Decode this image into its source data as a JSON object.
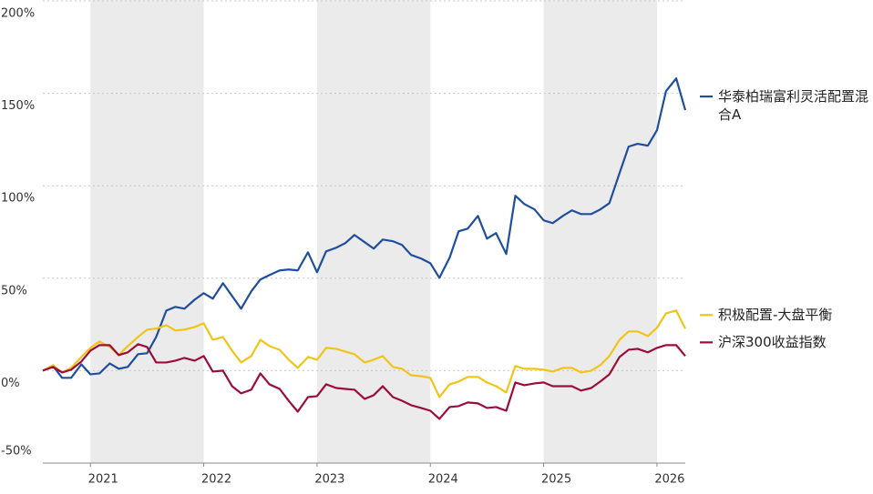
{
  "chart_data": {
    "type": "line",
    "x": [
      2020.58,
      2020.67,
      2020.75,
      2020.83,
      2020.92,
      2021.0,
      2021.08,
      2021.17,
      2021.25,
      2021.33,
      2021.42,
      2021.5,
      2021.58,
      2021.67,
      2021.75,
      2021.83,
      2021.92,
      2022.0,
      2022.08,
      2022.17,
      2022.25,
      2022.33,
      2022.42,
      2022.5,
      2022.58,
      2022.67,
      2022.75,
      2022.83,
      2022.92,
      2023.0,
      2023.08,
      2023.17,
      2023.25,
      2023.33,
      2023.42,
      2023.5,
      2023.58,
      2023.67,
      2023.75,
      2023.83,
      2023.92,
      2024.0,
      2024.08,
      2024.17,
      2024.25,
      2024.33,
      2024.42,
      2024.5,
      2024.58,
      2024.67,
      2024.75,
      2024.83,
      2024.92,
      2025.0,
      2025.08,
      2025.17,
      2025.25,
      2025.33,
      2025.42,
      2025.5,
      2025.58,
      2025.67,
      2025.75,
      2025.83,
      2025.92,
      2026.0,
      2026.08,
      2026.17,
      2026.25
    ],
    "series": [
      {
        "name": "华泰柏瑞富利灵活配置混合A",
        "color": "#1f4e9e",
        "values": [
          0,
          2.5,
          -3.9,
          -3.9,
          3.4,
          -2.0,
          -1.5,
          3.9,
          1.0,
          2.0,
          8.9,
          9.4,
          18.2,
          32.5,
          34.5,
          33.5,
          38.4,
          41.9,
          38.9,
          47.3,
          40.4,
          33.5,
          42.9,
          49.3,
          51.7,
          54.2,
          54.7,
          54.2,
          64.0,
          53.2,
          64.5,
          66.5,
          69.0,
          73.4,
          69.5,
          66.0,
          70.9,
          70.0,
          68.0,
          62.6,
          60.6,
          58.1,
          50.2,
          61.1,
          75.4,
          76.8,
          83.7,
          71.4,
          74.4,
          63.1,
          94.6,
          90.1,
          87.2,
          81.3,
          79.8,
          83.7,
          86.7,
          84.7,
          84.7,
          87.2,
          90.6,
          106.9,
          121.2,
          122.7,
          121.7,
          130.0,
          151.2,
          158.1,
          140.9
        ]
      },
      {
        "name": "积极配置-大盘平衡",
        "color": "#f0c419",
        "values": [
          0,
          3.0,
          -1.0,
          1.5,
          7.4,
          12.3,
          15.8,
          12.8,
          8.4,
          13.3,
          18.2,
          22.2,
          22.7,
          24.6,
          21.7,
          22.2,
          23.6,
          25.6,
          16.7,
          18.2,
          10.8,
          4.4,
          7.9,
          16.7,
          13.3,
          11.3,
          5.9,
          1.5,
          7.4,
          5.9,
          12.3,
          11.8,
          10.3,
          8.9,
          4.4,
          5.9,
          7.9,
          2.0,
          1.0,
          -2.5,
          -3.0,
          -3.9,
          -14.3,
          -7.4,
          -5.9,
          -3.4,
          -3.4,
          -6.4,
          -8.4,
          -11.8,
          2.5,
          1.0,
          1.0,
          0.5,
          -0.5,
          1.5,
          1.5,
          -1.0,
          0,
          3.0,
          7.9,
          16.7,
          21.2,
          21.2,
          18.7,
          23.2,
          31.0,
          32.5,
          22.7
        ]
      },
      {
        "name": "沪深300收益指数",
        "color": "#9b0d3a",
        "values": [
          0,
          2.0,
          -1.0,
          0.5,
          4.9,
          10.8,
          13.8,
          13.8,
          8.4,
          9.9,
          14.3,
          12.8,
          4.4,
          4.4,
          5.4,
          6.9,
          5.4,
          7.9,
          -0.5,
          0,
          -8.4,
          -12.3,
          -10.3,
          -1.5,
          -7.4,
          -9.9,
          -16.3,
          -22.2,
          -14.3,
          -13.8,
          -7.4,
          -9.4,
          -9.9,
          -10.3,
          -15.3,
          -13.3,
          -8.4,
          -14.3,
          -16.3,
          -18.7,
          -20.2,
          -21.7,
          -26.1,
          -19.7,
          -19.2,
          -17.2,
          -17.7,
          -20.2,
          -19.7,
          -21.7,
          -6.4,
          -7.9,
          -6.9,
          -6.4,
          -8.4,
          -8.4,
          -8.4,
          -10.8,
          -9.4,
          -5.9,
          -2.0,
          7.4,
          11.3,
          11.8,
          9.9,
          12.3,
          13.8,
          13.8,
          7.9
        ]
      }
    ],
    "xlim": [
      2020.58,
      2026.25
    ],
    "xticks": [
      2021,
      2022,
      2023,
      2024,
      2025,
      2026
    ],
    "ylim": [
      -50,
      200
    ],
    "yticks": [
      {
        "value": -50,
        "label": "-50%"
      },
      {
        "value": 0,
        "label": "0%"
      },
      {
        "value": 50,
        "label": "50%"
      },
      {
        "value": 100,
        "label": "100%"
      },
      {
        "value": 150,
        "label": "150%"
      },
      {
        "value": 200,
        "label": "200%"
      }
    ],
    "grid": true,
    "legend": "right"
  }
}
